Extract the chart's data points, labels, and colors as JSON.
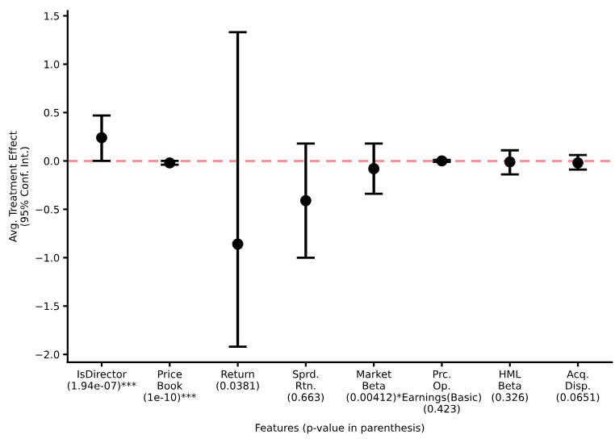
{
  "chart_data": {
    "type": "scatter",
    "xlabel": "Features (p-value in parenthesis)",
    "ylabel": "Avg. Treatment Effect\n(95% Conf. Int.)",
    "categories": [
      "IsDirector\n(1.94e-07)***",
      "Price\nBook\n(1e-10)***",
      "Return\n(0.0381)",
      "Sprd.\nRtn.\n(0.663)",
      "Market\nBeta\n(0.00412)*",
      "Prc.\nOp.\nEarnings(Basic)\n(0.423)",
      "HML\nBeta\n(0.326)",
      "Acq.\nDisp.\n(0.0651)"
    ],
    "values": [
      0.24,
      -0.02,
      -0.86,
      -0.41,
      -0.08,
      0.0,
      -0.01,
      -0.02
    ],
    "errors": [
      [
        0.0,
        0.47
      ],
      [
        -0.04,
        0.0
      ],
      [
        -1.92,
        1.33
      ],
      [
        -1.0,
        0.18
      ],
      [
        -0.34,
        0.18
      ],
      [
        -0.01,
        0.01
      ],
      [
        -0.14,
        0.11
      ],
      [
        -0.09,
        0.06
      ]
    ],
    "color": "#000000",
    "marker": "circle",
    "ylim": [
      -2.08,
      1.55
    ],
    "yticks": [
      {
        "value": -2,
        "label": "−2.0"
      },
      -1.5,
      {
        "value": -1,
        "label": "−1.0"
      },
      -0.5,
      {
        "value": 0,
        "label": "0.0"
      },
      0.5,
      {
        "value": 1,
        "label": "1.0"
      },
      1.5
    ],
    "ref_lines": [
      {
        "axis": "y",
        "value": 0,
        "color": "#ff8080",
        "line_style": "dashed"
      }
    ],
    "grid": false,
    "legend": false
  }
}
